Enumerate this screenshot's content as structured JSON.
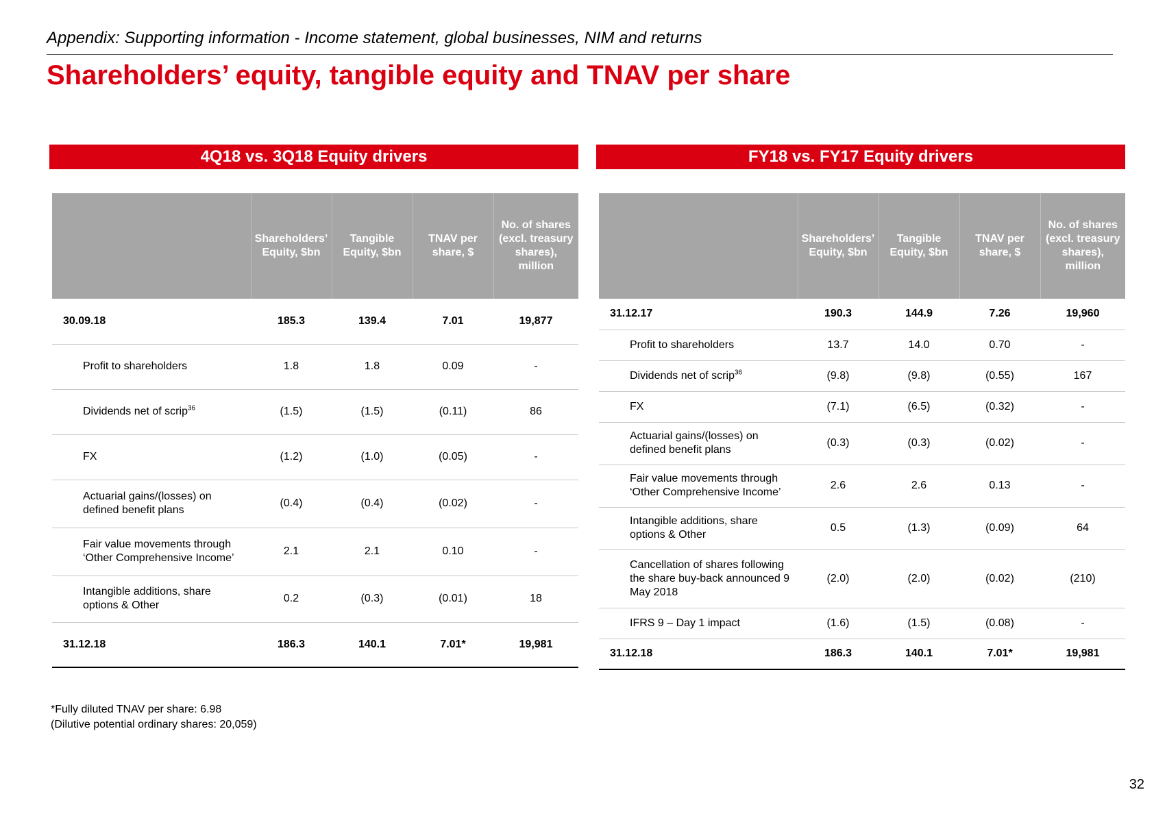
{
  "header": {
    "subtitle": "Appendix: Supporting information - Income statement, global businesses, NIM and returns",
    "title": "Shareholders’ equity, tangible equity and TNAV per share"
  },
  "columns": {
    "equity": "Shareholders’ Equity, $bn",
    "tangible": "Tangible Equity, $bn",
    "tnav": "TNAV per share, $",
    "shares": "No. of shares (excl. treasury shares), million"
  },
  "left": {
    "title": "4Q18 vs. 3Q18 Equity drivers",
    "rows": [
      {
        "label": "30.09.18",
        "sup": "",
        "equity": "185.3",
        "tangible": "139.4",
        "tnav": "7.01",
        "shares": "19,877"
      },
      {
        "label": "Profit to shareholders",
        "sup": "",
        "equity": "1.8",
        "tangible": "1.8",
        "tnav": "0.09",
        "shares": "-"
      },
      {
        "label": "Dividends net of scrip",
        "sup": "36",
        "equity": "(1.5)",
        "tangible": "(1.5)",
        "tnav": "(0.11)",
        "shares": "86"
      },
      {
        "label": "FX",
        "sup": "",
        "equity": "(1.2)",
        "tangible": "(1.0)",
        "tnav": "(0.05)",
        "shares": "-"
      },
      {
        "label": "Actuarial gains/(losses) on defined benefit plans",
        "sup": "",
        "equity": "(0.4)",
        "tangible": "(0.4)",
        "tnav": "(0.02)",
        "shares": "-"
      },
      {
        "label": "Fair value movements through ‘Other Comprehensive Income’",
        "sup": "",
        "equity": "2.1",
        "tangible": "2.1",
        "tnav": "0.10",
        "shares": "-"
      },
      {
        "label": "Intangible additions, share options & Other",
        "sup": "",
        "equity": "0.2",
        "tangible": "(0.3)",
        "tnav": "(0.01)",
        "shares": "18"
      },
      {
        "label": "31.12.18",
        "sup": "",
        "equity": "186.3",
        "tangible": "140.1",
        "tnav": "7.01*",
        "shares": "19,981"
      }
    ]
  },
  "right": {
    "title": "FY18 vs. FY17 Equity drivers",
    "rows": [
      {
        "label": "31.12.17",
        "sup": "",
        "equity": "190.3",
        "tangible": "144.9",
        "tnav": "7.26",
        "shares": "19,960"
      },
      {
        "label": "Profit to shareholders",
        "sup": "",
        "equity": "13.7",
        "tangible": "14.0",
        "tnav": "0.70",
        "shares": "-"
      },
      {
        "label": "Dividends net of scrip",
        "sup": "36",
        "equity": "(9.8)",
        "tangible": "(9.8)",
        "tnav": "(0.55)",
        "shares": "167"
      },
      {
        "label": "FX",
        "sup": "",
        "equity": "(7.1)",
        "tangible": "(6.5)",
        "tnav": "(0.32)",
        "shares": "-"
      },
      {
        "label": "Actuarial gains/(losses) on defined benefit plans",
        "sup": "",
        "equity": "(0.3)",
        "tangible": "(0.3)",
        "tnav": "(0.02)",
        "shares": "-"
      },
      {
        "label": "Fair value movements through ‘Other Comprehensive Income’",
        "sup": "",
        "equity": "2.6",
        "tangible": "2.6",
        "tnav": "0.13",
        "shares": "-"
      },
      {
        "label": "Intangible additions, share options & Other",
        "sup": "",
        "equity": "0.5",
        "tangible": "(1.3)",
        "tnav": "(0.09)",
        "shares": "64"
      },
      {
        "label": "Cancellation of shares following the share buy-back announced 9 May 2018",
        "sup": "",
        "equity": "(2.0)",
        "tangible": "(2.0)",
        "tnav": "(0.02)",
        "shares": "(210)"
      },
      {
        "label": "IFRS 9 – Day 1 impact",
        "sup": "",
        "equity": "(1.6)",
        "tangible": "(1.5)",
        "tnav": "(0.08)",
        "shares": "-"
      },
      {
        "label": "31.12.18",
        "sup": "",
        "equity": "186.3",
        "tangible": "140.1",
        "tnav": "7.01*",
        "shares": "19,981"
      }
    ]
  },
  "footnote": {
    "line1": "*Fully diluted TNAV per share: 6.98",
    "line2": "(Dilutive potential ordinary shares: 20,059)"
  },
  "page_number": "32"
}
